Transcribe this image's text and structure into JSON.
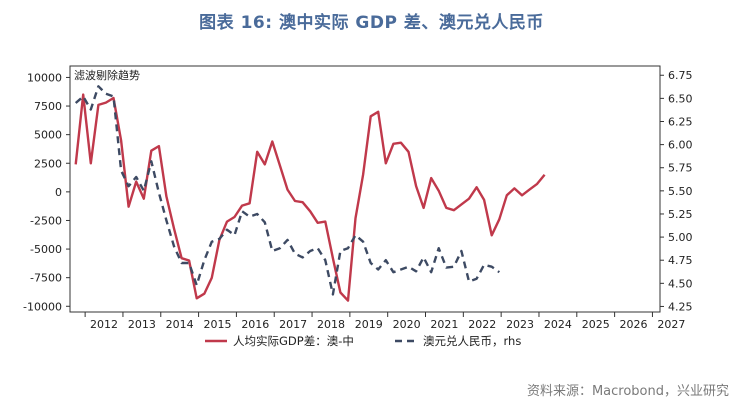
{
  "title": "图表 16: 澳中实际 GDP 差、澳元兑人民币",
  "source": "资料来源：Macrobond，兴业研究",
  "chart_data": {
    "type": "line",
    "title": "图表 16: 澳中实际 GDP 差、澳元兑人民币",
    "annotation": "滤波剔除趋势",
    "x_ticks": [
      "2012",
      "2013",
      "2014",
      "2015",
      "2016",
      "2017",
      "2018",
      "2019",
      "2020",
      "2021",
      "2022",
      "2023",
      "2024",
      "2025",
      "2026",
      "2027"
    ],
    "xlim": [
      2011.6,
      2027.2
    ],
    "y_left": {
      "lim": [
        -10500,
        11000
      ],
      "ticks": [
        "10000",
        "7500",
        "5000",
        "2500",
        "0",
        "-2500",
        "-5000",
        "-7500",
        "-10000"
      ],
      "tick_values": [
        10000,
        7500,
        5000,
        2500,
        0,
        -2500,
        -5000,
        -7500,
        -10000
      ]
    },
    "y_right": {
      "lim": [
        4.19,
        6.85
      ],
      "ticks": [
        "6.75",
        "6.50",
        "6.25",
        "6.00",
        "5.75",
        "5.50",
        "5.25",
        "5.00",
        "4.75",
        "4.50",
        "4.25"
      ],
      "tick_values": [
        6.75,
        6.5,
        6.25,
        6.0,
        5.75,
        5.5,
        5.25,
        5.0,
        4.75,
        4.5,
        4.25
      ]
    },
    "series": [
      {
        "name": "人均实际GDP差：澳-中",
        "axis": "left",
        "color": "#c0394b",
        "style": "solid",
        "points": [
          [
            2011.75,
            2400
          ],
          [
            2011.95,
            8500
          ],
          [
            2012.15,
            2500
          ],
          [
            2012.35,
            7600
          ],
          [
            2012.55,
            7800
          ],
          [
            2012.75,
            8200
          ],
          [
            2012.95,
            4500
          ],
          [
            2013.15,
            -1300
          ],
          [
            2013.35,
            900
          ],
          [
            2013.55,
            -600
          ],
          [
            2013.75,
            3600
          ],
          [
            2013.95,
            4000
          ],
          [
            2014.15,
            -400
          ],
          [
            2014.35,
            -3200
          ],
          [
            2014.55,
            -5800
          ],
          [
            2014.75,
            -6000
          ],
          [
            2014.95,
            -9300
          ],
          [
            2015.15,
            -8900
          ],
          [
            2015.35,
            -7500
          ],
          [
            2015.55,
            -4200
          ],
          [
            2015.75,
            -2600
          ],
          [
            2015.95,
            -2200
          ],
          [
            2016.15,
            -1200
          ],
          [
            2016.35,
            -1000
          ],
          [
            2016.55,
            3500
          ],
          [
            2016.75,
            2400
          ],
          [
            2016.95,
            4400
          ],
          [
            2017.15,
            2300
          ],
          [
            2017.35,
            200
          ],
          [
            2017.55,
            -800
          ],
          [
            2017.75,
            -900
          ],
          [
            2017.95,
            -1700
          ],
          [
            2018.15,
            -2700
          ],
          [
            2018.35,
            -2600
          ],
          [
            2018.55,
            -5800
          ],
          [
            2018.75,
            -8800
          ],
          [
            2018.95,
            -9500
          ],
          [
            2019.15,
            -2300
          ],
          [
            2019.35,
            1500
          ],
          [
            2019.55,
            6600
          ],
          [
            2019.75,
            7000
          ],
          [
            2019.95,
            2500
          ],
          [
            2020.15,
            4200
          ],
          [
            2020.35,
            4300
          ],
          [
            2020.55,
            3500
          ],
          [
            2020.75,
            500
          ],
          [
            2020.95,
            -1400
          ],
          [
            2021.15,
            1200
          ],
          [
            2021.35,
            100
          ],
          [
            2021.55,
            -1400
          ],
          [
            2021.75,
            -1600
          ],
          [
            2021.95,
            -1100
          ],
          [
            2022.15,
            -600
          ],
          [
            2022.35,
            400
          ],
          [
            2022.55,
            -700
          ],
          [
            2022.75,
            -3800
          ],
          [
            2022.95,
            -2400
          ],
          [
            2023.15,
            -300
          ],
          [
            2023.35,
            300
          ],
          [
            2023.55,
            -300
          ],
          [
            2023.75,
            200
          ],
          [
            2023.95,
            700
          ],
          [
            2024.15,
            1500
          ]
        ]
      },
      {
        "name": "澳元兑人民币，rhs",
        "axis": "right",
        "color": "#3d4a63",
        "style": "dashed",
        "points": [
          [
            2011.75,
            6.45
          ],
          [
            2011.95,
            6.52
          ],
          [
            2012.15,
            6.38
          ],
          [
            2012.35,
            6.63
          ],
          [
            2012.55,
            6.55
          ],
          [
            2012.75,
            6.52
          ],
          [
            2012.95,
            5.72
          ],
          [
            2013.15,
            5.55
          ],
          [
            2013.35,
            5.65
          ],
          [
            2013.55,
            5.5
          ],
          [
            2013.75,
            5.82
          ],
          [
            2013.95,
            5.48
          ],
          [
            2014.15,
            5.18
          ],
          [
            2014.35,
            4.9
          ],
          [
            2014.55,
            4.72
          ],
          [
            2014.75,
            4.72
          ],
          [
            2014.95,
            4.48
          ],
          [
            2015.15,
            4.75
          ],
          [
            2015.35,
            4.95
          ],
          [
            2015.55,
            4.98
          ],
          [
            2015.75,
            5.08
          ],
          [
            2015.95,
            5.02
          ],
          [
            2016.15,
            5.28
          ],
          [
            2016.35,
            5.22
          ],
          [
            2016.55,
            5.25
          ],
          [
            2016.75,
            5.16
          ],
          [
            2016.95,
            4.85
          ],
          [
            2017.15,
            4.88
          ],
          [
            2017.35,
            4.97
          ],
          [
            2017.55,
            4.82
          ],
          [
            2017.75,
            4.78
          ],
          [
            2017.95,
            4.85
          ],
          [
            2018.15,
            4.88
          ],
          [
            2018.35,
            4.75
          ],
          [
            2018.55,
            4.38
          ],
          [
            2018.75,
            4.85
          ],
          [
            2018.95,
            4.88
          ],
          [
            2019.15,
            5.02
          ],
          [
            2019.35,
            4.95
          ],
          [
            2019.55,
            4.72
          ],
          [
            2019.75,
            4.65
          ],
          [
            2019.95,
            4.75
          ],
          [
            2020.15,
            4.62
          ],
          [
            2020.35,
            4.65
          ],
          [
            2020.55,
            4.68
          ],
          [
            2020.75,
            4.63
          ],
          [
            2020.95,
            4.78
          ],
          [
            2021.15,
            4.62
          ],
          [
            2021.35,
            4.88
          ],
          [
            2021.55,
            4.67
          ],
          [
            2021.75,
            4.68
          ],
          [
            2021.95,
            4.85
          ],
          [
            2022.15,
            4.52
          ],
          [
            2022.35,
            4.55
          ],
          [
            2022.55,
            4.7
          ],
          [
            2022.75,
            4.68
          ],
          [
            2022.95,
            4.62
          ]
        ]
      }
    ]
  }
}
